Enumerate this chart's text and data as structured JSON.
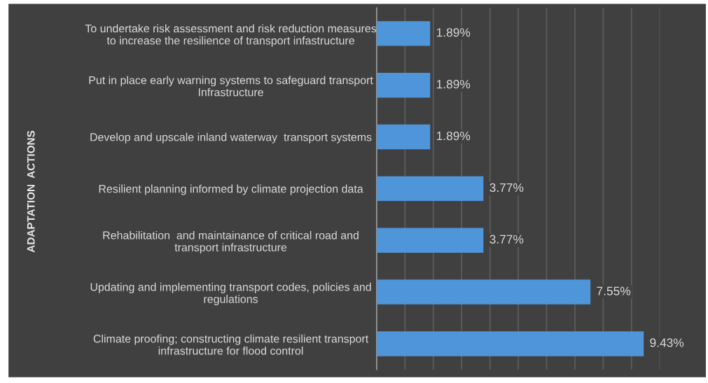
{
  "chart_data": {
    "type": "bar",
    "orientation": "horizontal",
    "ylabel": "ADAPTATION  ACTIONS",
    "categories": [
      "To undertake risk assessment and risk reduction measures\nto increase the resilience of transport infastructure",
      "Put in place early warning systems to safeguard transport\nInfrastructure",
      "Develop and upscale inland waterway  transport systems",
      "Resilient planning informed by climate projection data",
      "Rehabilitation  and maintainance of critical road and\ntransport infrastructure",
      "Updating and implementing transport codes, policies and\nregulations",
      "Climate proofing; constructing climate resilient transport\ninfrastructure for flood control"
    ],
    "values": [
      1.89,
      1.89,
      1.89,
      3.77,
      3.77,
      7.55,
      9.43
    ],
    "value_labels": [
      "1.89%",
      "1.89%",
      "1.89%",
      "3.77%",
      "3.77%",
      "7.55%",
      "9.43%"
    ],
    "color": "#4f95d9",
    "xlim": [
      0,
      10
    ],
    "xticks": [
      {
        "value": 0,
        "label": null
      },
      {
        "value": 1,
        "label": null
      },
      {
        "value": 2,
        "label": null
      },
      {
        "value": 3,
        "label": null
      },
      {
        "value": 4,
        "label": null
      },
      {
        "value": 5,
        "label": null
      },
      {
        "value": 6,
        "label": null
      },
      {
        "value": 7,
        "label": null
      },
      {
        "value": 8,
        "label": null
      },
      {
        "value": 9,
        "label": null
      },
      {
        "value": 10,
        "label": null
      }
    ],
    "grid": "x",
    "tick_labels": "y"
  }
}
